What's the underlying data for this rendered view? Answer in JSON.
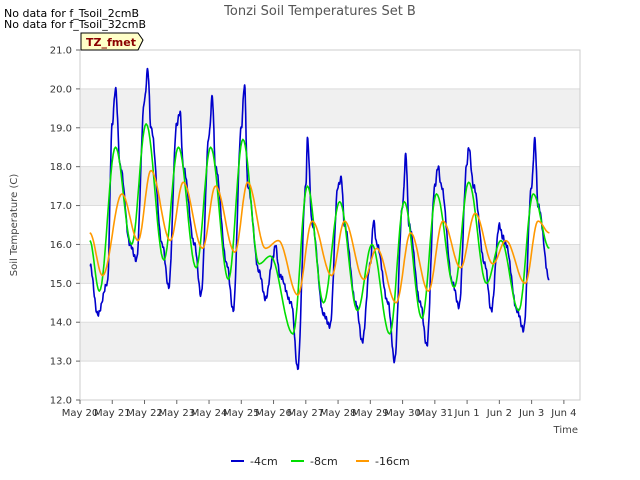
{
  "no_data_messages": [
    "No data for f_Tsoil_2cmB",
    "No data for f_Tsoil_32cmB"
  ],
  "badge": "TZ_fmet",
  "chart_data": {
    "type": "line",
    "title": "Tonzi Soil Temperatures Set B",
    "xlabel": "Time",
    "ylabel": "Soil Temperature (C)",
    "ylim": [
      12.0,
      21.0
    ],
    "yticks": [
      12.0,
      13.0,
      14.0,
      15.0,
      16.0,
      17.0,
      18.0,
      19.0,
      20.0,
      21.0
    ],
    "ytick_labels": [
      "12.0",
      "13.0",
      "14.0",
      "15.0",
      "16.0",
      "17.0",
      "18.0",
      "19.0",
      "20.0",
      "21.0"
    ],
    "xlim": [
      0,
      15.5
    ],
    "xticks": [
      0,
      1,
      2,
      3,
      4,
      5,
      6,
      7,
      8,
      9,
      10,
      11,
      12,
      13,
      14,
      15
    ],
    "xtick_labels": [
      "May 20",
      "May 21",
      "May 22",
      "May 23",
      "May 24",
      "May 25",
      "May 26",
      "May 27",
      "May 28",
      "May 29",
      "May 30",
      "May 31",
      "Jun 1",
      "Jun 2",
      "Jun 3",
      "Jun 4"
    ],
    "grid": true,
    "legend_position": "bottom-center",
    "series": [
      {
        "name": "-4cm",
        "color": "#0000cc",
        "x": [
          0.3,
          0.55,
          0.85,
          1.0,
          1.1,
          1.25,
          1.55,
          1.75,
          2.0,
          2.1,
          2.2,
          2.55,
          2.75,
          3.0,
          3.1,
          3.2,
          3.55,
          3.75,
          4.0,
          4.1,
          4.2,
          4.55,
          4.75,
          5.0,
          5.1,
          5.2,
          5.55,
          5.75,
          6.0,
          6.05,
          6.2,
          6.55,
          6.75,
          7.0,
          7.05,
          7.2,
          7.55,
          7.75,
          8.0,
          8.1,
          8.2,
          8.55,
          8.75,
          9.0,
          9.1,
          9.2,
          9.55,
          9.75,
          10.0,
          10.1,
          10.2,
          10.55,
          10.75,
          11.0,
          11.1,
          11.2,
          11.55,
          11.75,
          12.0,
          12.05,
          12.2,
          12.55,
          12.75,
          13.0,
          13.1,
          13.2,
          13.55,
          13.75,
          14.0,
          14.1,
          14.2,
          14.55
        ],
        "values": [
          15.5,
          14.2,
          15.0,
          19.1,
          20.0,
          18.0,
          16.0,
          15.6,
          19.7,
          20.5,
          19.0,
          16.0,
          14.9,
          19.1,
          19.4,
          18.0,
          16.0,
          14.7,
          18.8,
          19.8,
          18.0,
          15.5,
          14.3,
          19.0,
          20.1,
          17.5,
          15.3,
          14.6,
          15.7,
          16.0,
          15.2,
          14.5,
          12.8,
          17.5,
          18.7,
          16.5,
          14.2,
          13.9,
          17.5,
          17.7,
          16.5,
          14.5,
          13.5,
          15.5,
          16.6,
          16.0,
          14.5,
          13.0,
          17.0,
          18.3,
          16.5,
          14.5,
          13.4,
          17.5,
          18.0,
          17.5,
          15.0,
          14.4,
          18.1,
          18.5,
          17.5,
          15.5,
          14.3,
          16.5,
          16.2,
          16.0,
          14.3,
          13.8,
          17.5,
          18.7,
          17.0,
          15.1
        ]
      },
      {
        "name": "-8cm",
        "color": "#00dd00",
        "x": [
          0.3,
          0.6,
          1.1,
          1.6,
          2.05,
          2.6,
          3.05,
          3.6,
          4.05,
          4.6,
          5.05,
          5.55,
          5.9,
          6.6,
          7.05,
          7.55,
          8.05,
          8.6,
          9.05,
          9.6,
          10.05,
          10.6,
          11.05,
          11.6,
          12.05,
          12.6,
          13.05,
          13.6,
          14.05,
          14.55
        ],
        "values": [
          16.1,
          14.8,
          18.5,
          16.0,
          19.1,
          15.6,
          18.5,
          15.4,
          18.5,
          15.1,
          18.7,
          15.5,
          15.7,
          13.7,
          17.5,
          14.5,
          17.1,
          14.3,
          16.0,
          13.7,
          17.1,
          14.1,
          17.3,
          14.9,
          17.6,
          15.0,
          16.1,
          14.3,
          17.3,
          15.9
        ]
      },
      {
        "name": "-16cm",
        "color": "#ff9900",
        "x": [
          0.3,
          0.7,
          1.3,
          1.8,
          2.2,
          2.8,
          3.2,
          3.8,
          4.2,
          4.8,
          5.2,
          5.75,
          6.15,
          6.75,
          7.2,
          7.8,
          8.2,
          8.8,
          9.2,
          9.8,
          10.25,
          10.8,
          11.25,
          11.8,
          12.25,
          12.8,
          13.2,
          13.8,
          14.2,
          14.55
        ],
        "values": [
          16.3,
          15.2,
          17.3,
          16.1,
          17.9,
          16.1,
          17.6,
          15.9,
          17.5,
          15.8,
          17.6,
          15.9,
          16.1,
          14.7,
          16.6,
          15.2,
          16.6,
          15.1,
          15.9,
          14.5,
          16.3,
          14.8,
          16.6,
          15.4,
          16.8,
          15.5,
          16.1,
          15.0,
          16.6,
          16.3
        ]
      }
    ]
  }
}
